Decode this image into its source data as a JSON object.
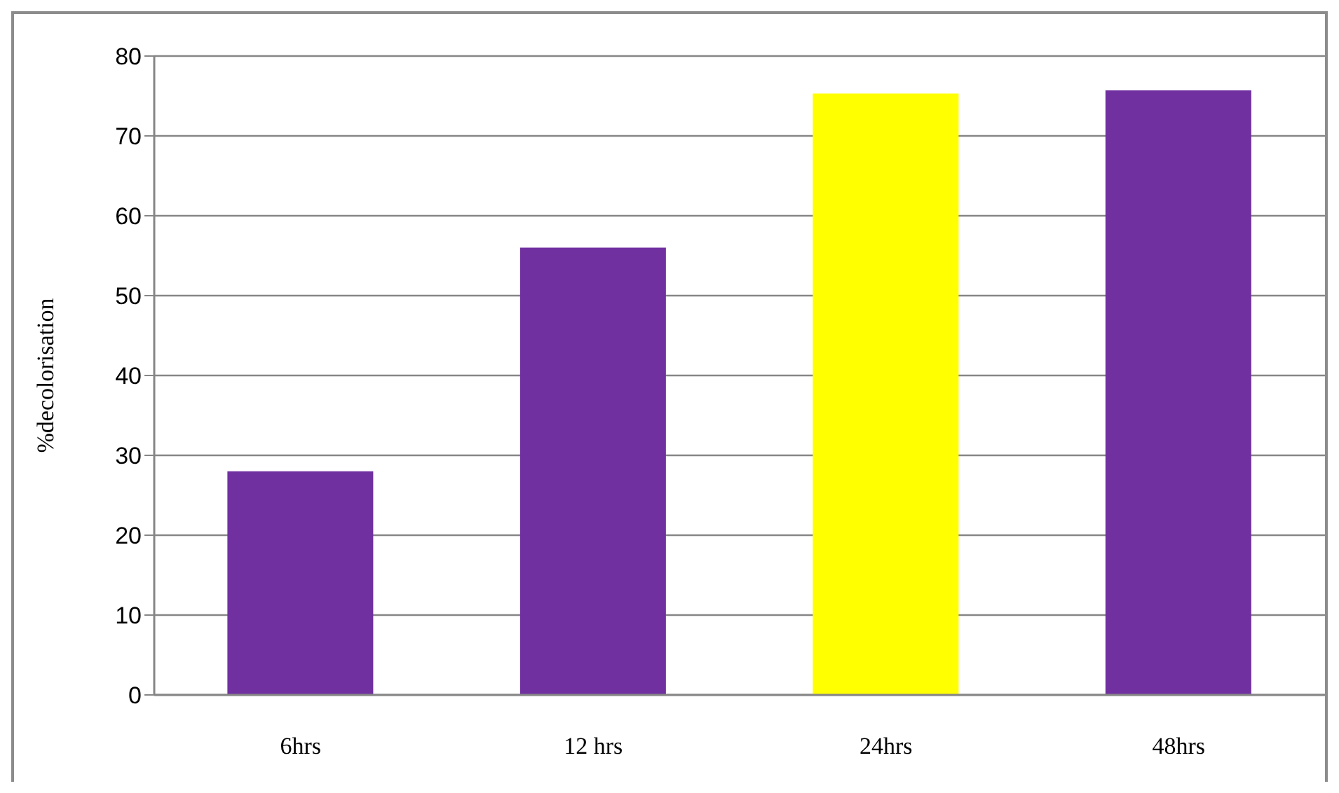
{
  "chart_data": {
    "type": "bar",
    "ylabel": "%decolorisation",
    "categories": [
      "6hrs",
      "12 hrs",
      "24hrs",
      "48hrs"
    ],
    "values": [
      28,
      56,
      75.3,
      75.7
    ],
    "colors": [
      "#7030a0",
      "#7030a0",
      "#ffff00",
      "#7030a0"
    ],
    "ylim": [
      0,
      80
    ],
    "yticks": [
      0,
      10,
      20,
      30,
      40,
      50,
      60,
      70,
      80
    ],
    "grid": "y",
    "legend": false
  }
}
